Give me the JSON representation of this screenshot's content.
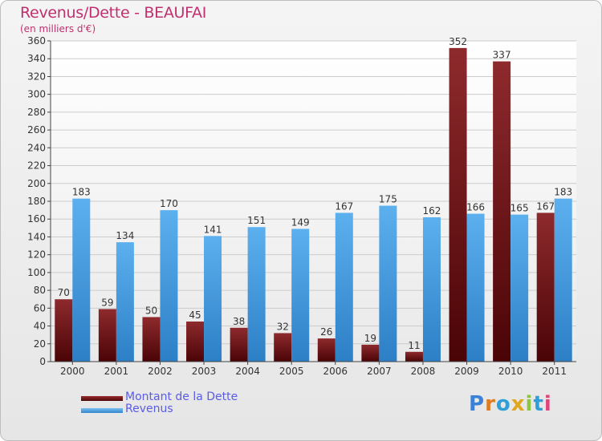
{
  "title": "Revenus/Dette - BEAUFAI",
  "subtitle": "(en milliers d'€)",
  "legend": [
    {
      "label": "Montant de la Dette",
      "color": "#6b0f12"
    },
    {
      "label": "Revenus",
      "color": "#4aa3e6"
    }
  ],
  "logo": {
    "letters": [
      "P",
      "r",
      "o",
      "x",
      "i",
      "t",
      "i"
    ],
    "colors": [
      "#3b82d6",
      "#e07a1f",
      "#2f9fd8",
      "#e0a81f",
      "#8cc63f",
      "#2f9fd8",
      "#e0467a"
    ]
  },
  "colors": {
    "debt": "#7a1a1c",
    "revenue": "#4aa3e6",
    "axis": "#444444",
    "grid": "#cccccc"
  },
  "chart_data": {
    "type": "bar",
    "categories": [
      "2000",
      "2001",
      "2002",
      "2003",
      "2004",
      "2005",
      "2006",
      "2007",
      "2008",
      "2009",
      "2010",
      "2011"
    ],
    "series": [
      {
        "name": "Montant de la Dette",
        "values": [
          70,
          59,
          50,
          45,
          38,
          32,
          26,
          19,
          11,
          352,
          337,
          167
        ]
      },
      {
        "name": "Revenus",
        "values": [
          183,
          134,
          170,
          141,
          151,
          149,
          167,
          175,
          162,
          166,
          165,
          183
        ]
      }
    ],
    "ylim": [
      0,
      360
    ],
    "ytick_step": 20,
    "grid": true,
    "legend_position": "bottom-left"
  }
}
